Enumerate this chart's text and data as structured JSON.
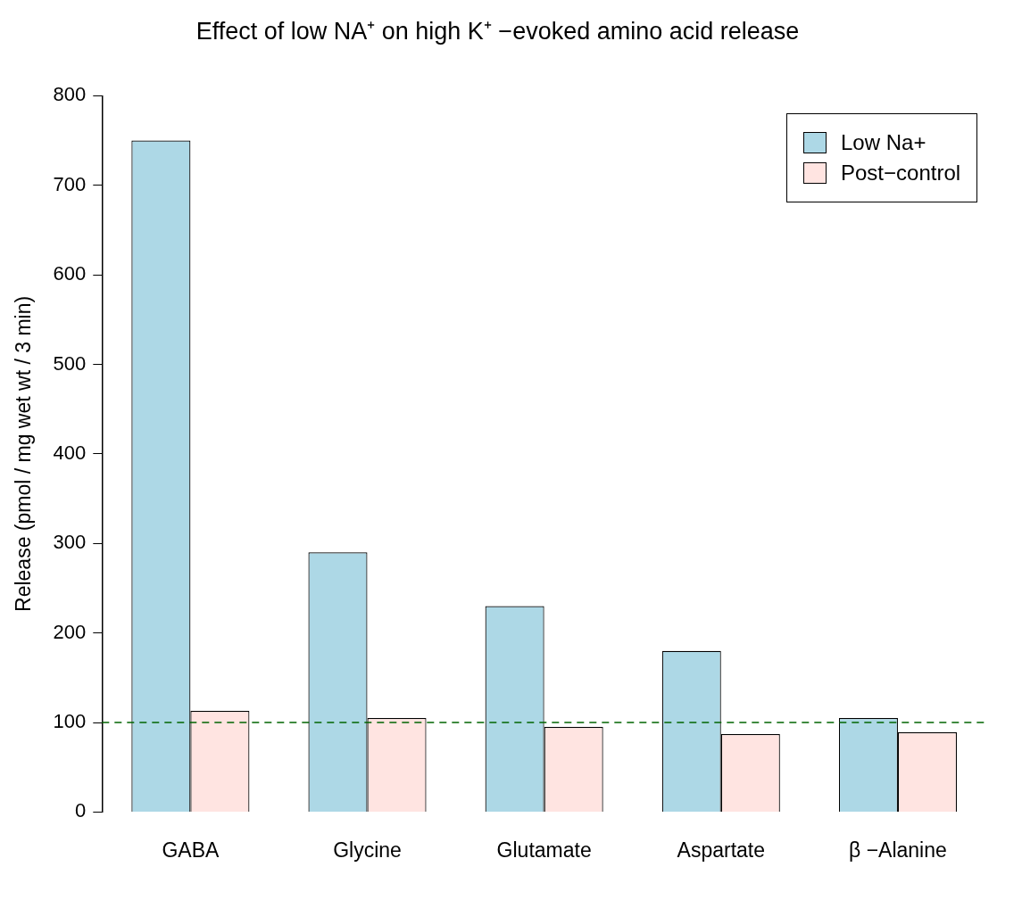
{
  "chart_data": {
    "type": "bar",
    "title": "Effect of low NA⁺ on high K⁺ −evoked amino acid release",
    "ylabel": "Release (pmol / mg wet wt / 3 min)",
    "categories": [
      "GABA",
      "Glycine",
      "Glutamate",
      "Aspartate",
      "β −Alanine"
    ],
    "series": [
      {
        "name": "Low Na+",
        "color": "#add8e6",
        "values": [
          750,
          290,
          230,
          180,
          105
        ]
      },
      {
        "name": "Post−control",
        "color": "#ffe4e1",
        "values": [
          113,
          105,
          95,
          87,
          89
        ]
      }
    ],
    "ylim": [
      0,
      800
    ],
    "yticks": [
      0,
      100,
      200,
      300,
      400,
      500,
      600,
      700,
      800
    ],
    "grid": false,
    "legend": "top right",
    "ref_lines": [
      {
        "axis": "y",
        "value": 100,
        "color": "#006400",
        "line_style": "dashed"
      }
    ]
  }
}
